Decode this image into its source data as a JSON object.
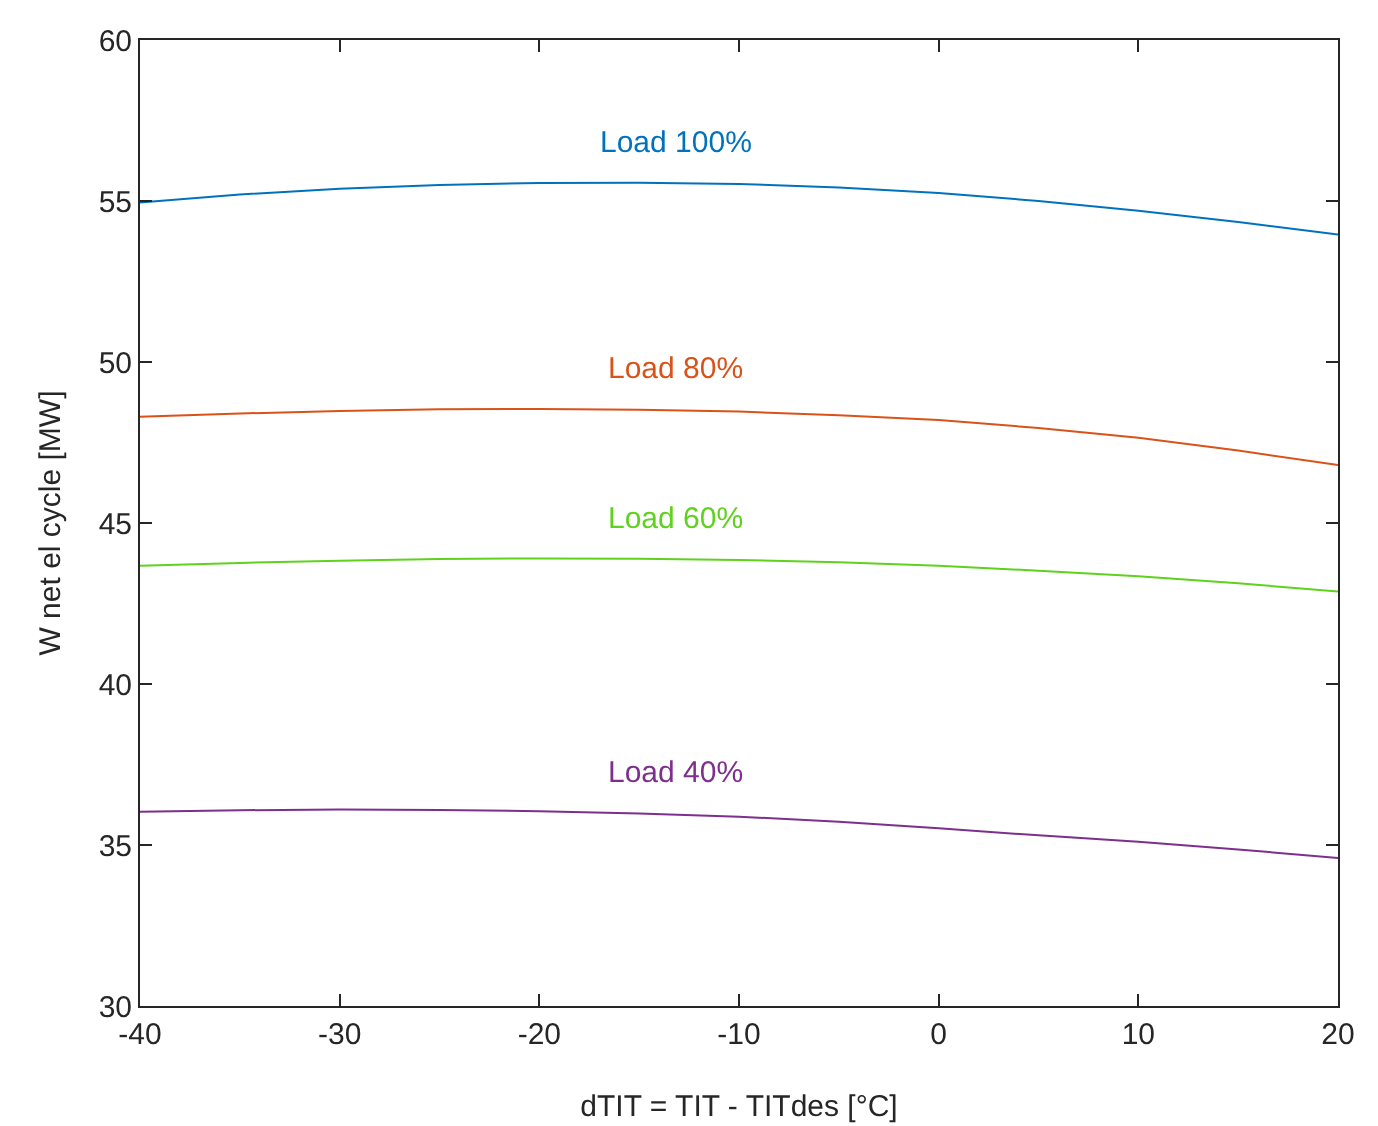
{
  "chart_data": {
    "type": "line",
    "xlabel": "dTIT = TIT - TITdes [°C]",
    "ylabel": "W net el cycle [MW]",
    "x": [
      -40,
      -35,
      -30,
      -25,
      -20,
      -15,
      -10,
      -5,
      0,
      5,
      10,
      15,
      20
    ],
    "series": [
      {
        "name": "Load 100%",
        "color": "#0072bd",
        "values": [
          54.95,
          55.2,
          55.38,
          55.5,
          55.56,
          55.57,
          55.53,
          55.42,
          55.25,
          55.0,
          54.7,
          54.35,
          53.96
        ]
      },
      {
        "name": "Load 80%",
        "color": "#d95319",
        "values": [
          48.3,
          48.4,
          48.48,
          48.53,
          48.54,
          48.52,
          48.46,
          48.35,
          48.2,
          47.95,
          47.65,
          47.25,
          46.8
        ]
      },
      {
        "name": "Load 60%",
        "color": "#5ed21c",
        "values": [
          43.67,
          43.76,
          43.83,
          43.88,
          43.9,
          43.89,
          43.85,
          43.78,
          43.67,
          43.52,
          43.35,
          43.13,
          42.87
        ]
      },
      {
        "name": "Load 40%",
        "color": "#7e2f8e",
        "values": [
          36.03,
          36.08,
          36.1,
          36.09,
          36.05,
          35.98,
          35.88,
          35.72,
          35.52,
          35.3,
          35.1,
          34.86,
          34.6
        ]
      }
    ],
    "xlim": [
      -40,
      20
    ],
    "xticks": [
      -40,
      -30,
      -20,
      -10,
      0,
      10,
      20
    ],
    "ylim": [
      30,
      60
    ],
    "yticks": [
      30,
      35,
      40,
      45,
      50,
      55,
      60
    ],
    "grid": false,
    "legend": false,
    "marker": "none",
    "line_style": "solid"
  }
}
